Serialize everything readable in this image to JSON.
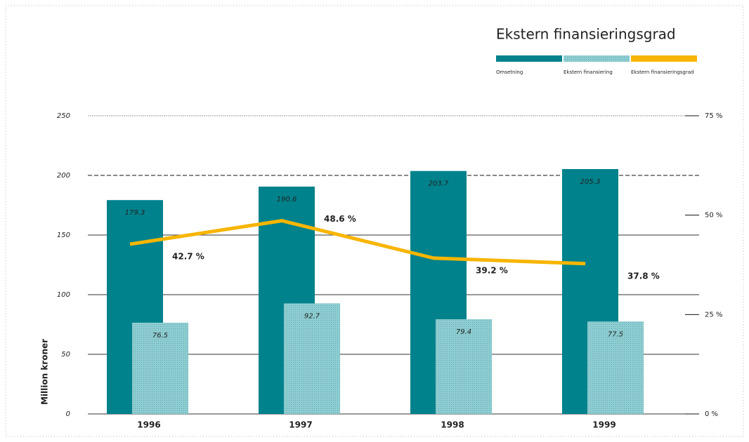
{
  "chart_data": {
    "type": "bar",
    "title": "Ekstern finansieringsgrad",
    "y_label": "Million kroner",
    "categories": [
      "1996",
      "1997",
      "1998",
      "1999"
    ],
    "series": [
      {
        "name": "Omsetning",
        "type": "bar",
        "color": "#00828c",
        "values": [
          179.3,
          190.6,
          203.7,
          205.3
        ]
      },
      {
        "name": "Ekstern finansiering",
        "type": "bar",
        "color": "#8ecdd1",
        "values": [
          76.5,
          92.7,
          79.4,
          77.5
        ]
      },
      {
        "name": "Ekstern finansieringsgrad",
        "type": "line",
        "axis": "y2",
        "color": "#f7b500",
        "values": [
          42.7,
          48.6,
          39.2,
          37.8
        ],
        "value_labels": [
          "42.7 %",
          "48.6 %",
          "39.2 %",
          "37.8 %"
        ]
      }
    ],
    "ylim": [
      0,
      250
    ],
    "yticks": [
      0,
      50,
      100,
      150,
      200,
      250
    ],
    "y2lim": [
      0,
      75
    ],
    "y2ticks": [
      {
        "value": 0,
        "label": "0 %"
      },
      {
        "value": 25,
        "label": "25 %"
      },
      {
        "value": 50,
        "label": "50 %"
      },
      {
        "value": 75,
        "label": "75 %"
      }
    ],
    "grid": true
  }
}
